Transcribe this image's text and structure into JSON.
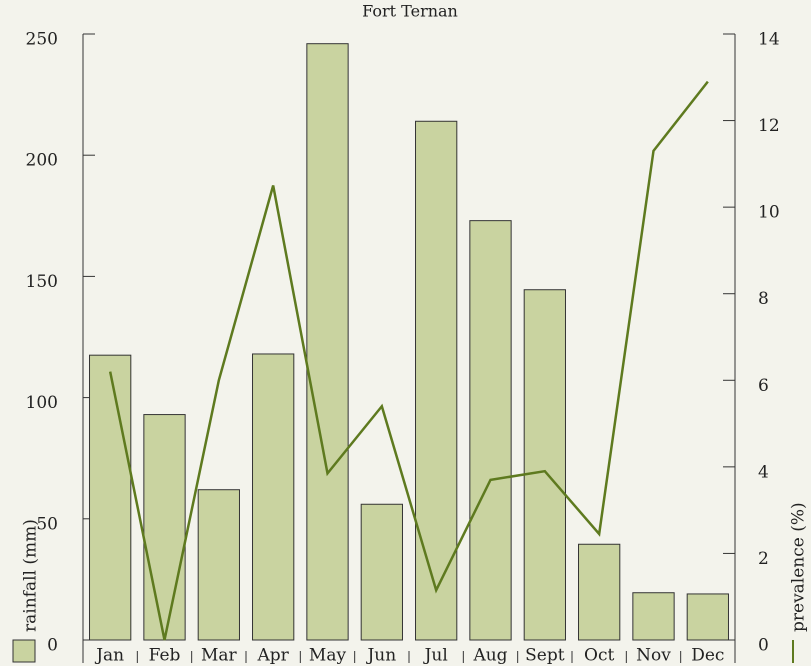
{
  "chart_data": {
    "type": "bar",
    "title": "Fort Ternan",
    "categories": [
      "Jan",
      "Feb",
      "Mar",
      "Apr",
      "May",
      "Jun",
      "Jul",
      "Aug",
      "Sept",
      "Oct",
      "Nov",
      "Dec"
    ],
    "series": [
      {
        "name": "rainfall (mm)",
        "type": "bar",
        "color": "#c9d3a0",
        "values": [
          117.5,
          93,
          62,
          118,
          246,
          56,
          214,
          173,
          144.5,
          39.5,
          19.5,
          19
        ]
      },
      {
        "name": "prevalence (%)",
        "type": "line",
        "axis": "y2",
        "color": "#5e7a1f",
        "values": [
          6.2,
          0,
          6.0,
          10.5,
          3.85,
          5.4,
          1.15,
          3.7,
          3.9,
          2.45,
          11.3,
          12.9
        ]
      }
    ],
    "ylim": [
      0,
      250
    ],
    "yticks": [
      0,
      50,
      100,
      150,
      200,
      250
    ],
    "y2lim": [
      0,
      14
    ],
    "y2ticks": [
      0,
      2,
      4,
      6,
      8,
      10,
      12,
      14
    ]
  }
}
